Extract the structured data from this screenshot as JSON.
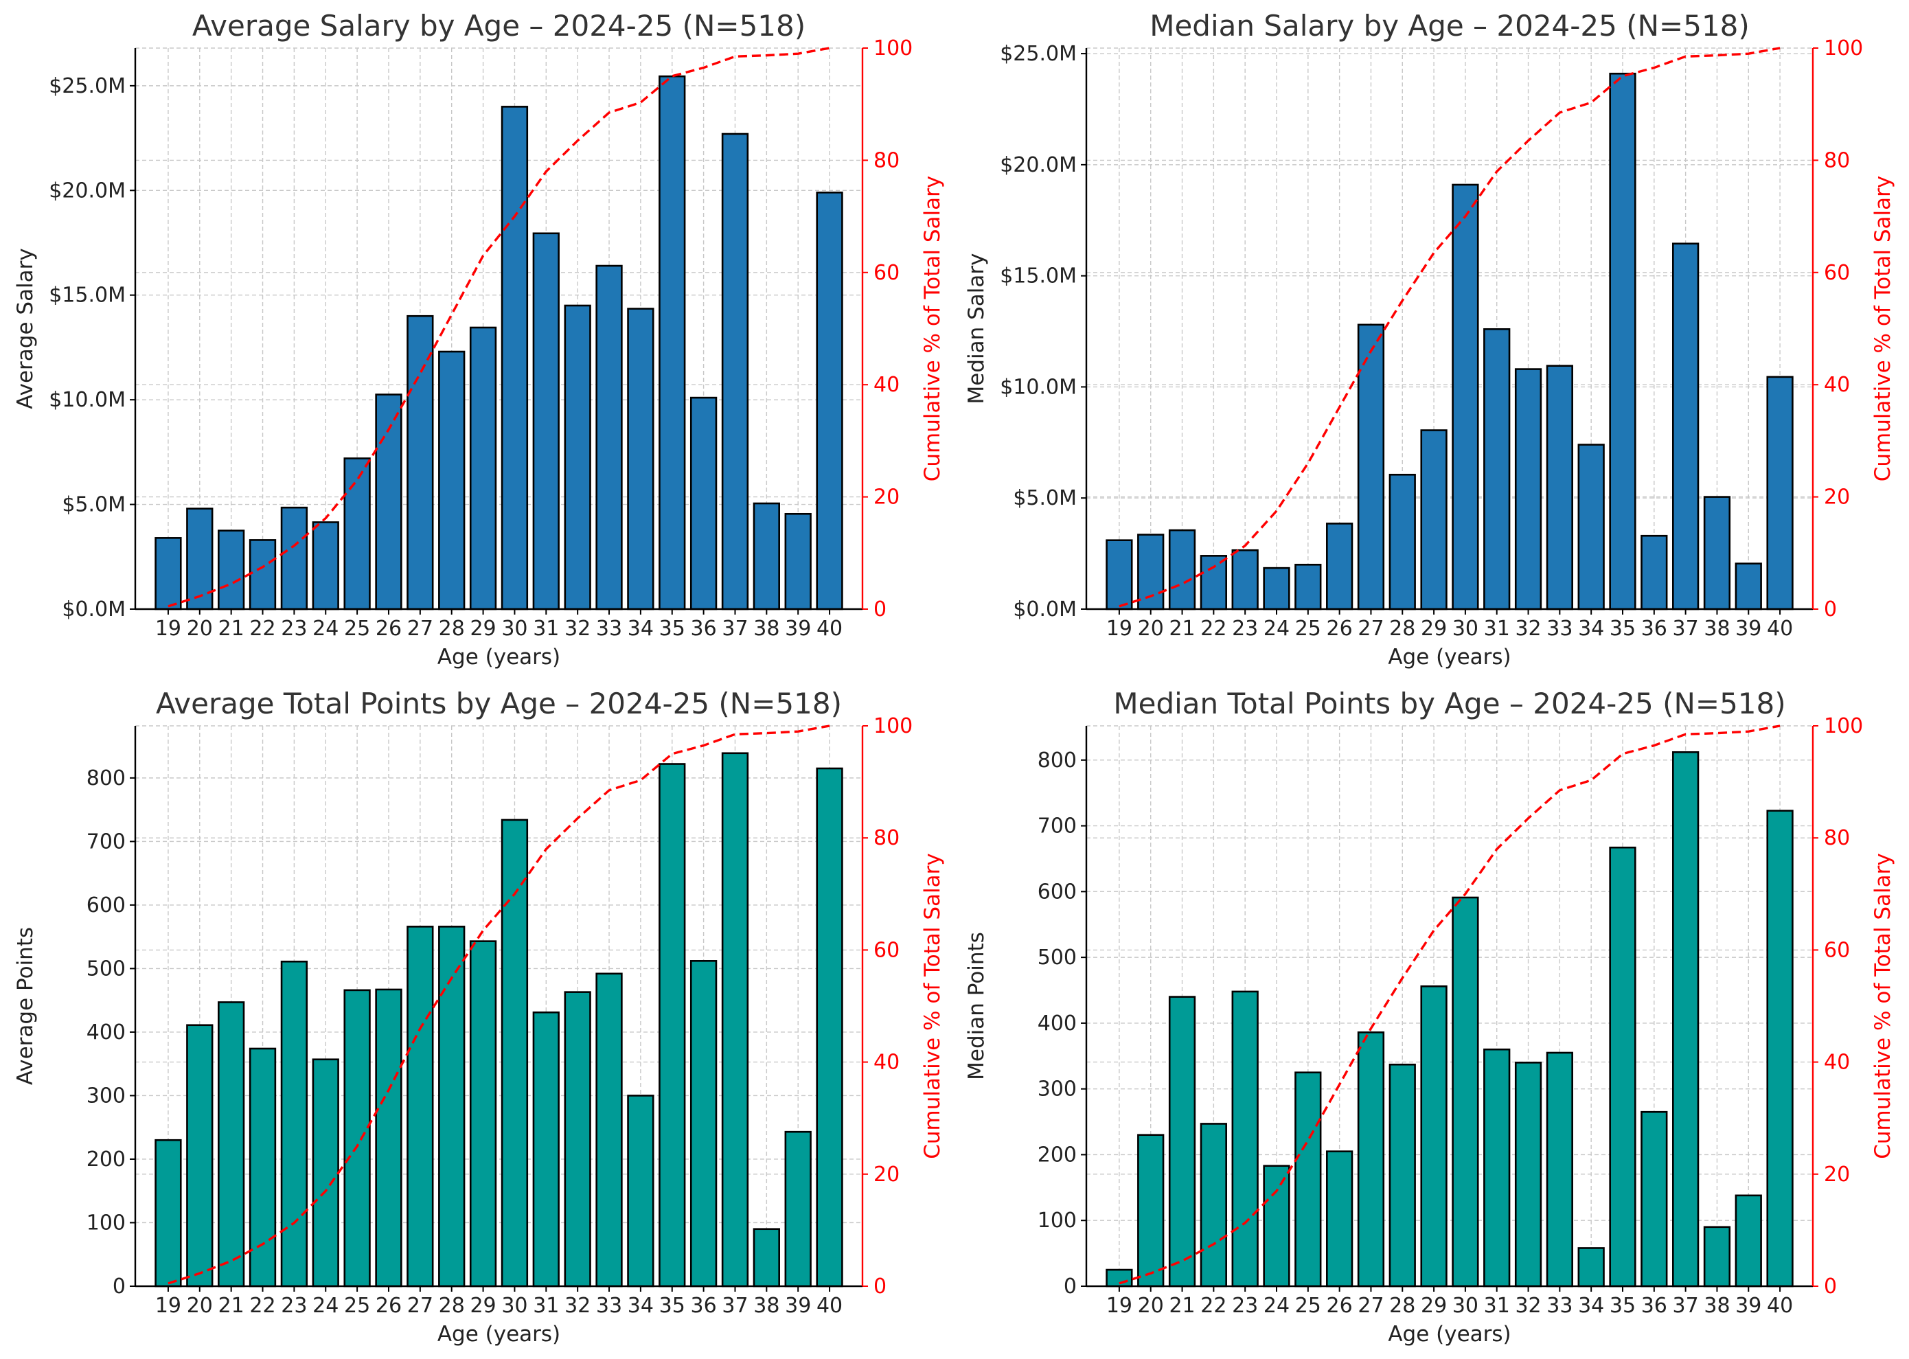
{
  "colors": {
    "salary_bar": "#1f77b4",
    "points_bar": "#009b96",
    "bar_edge": "#000000",
    "cumulative_line": "#ff0000",
    "grid": "#c8c8c8",
    "title": "#333333"
  },
  "chart_data": [
    {
      "type": "bar",
      "title": "Average Salary by Age – 2024-25 (N=518)",
      "xlabel": "Age (years)",
      "ylabel": "Average Salary",
      "y2label": "Cumulative % of Total Salary",
      "categories": [
        "19",
        "20",
        "21",
        "22",
        "23",
        "24",
        "25",
        "26",
        "27",
        "28",
        "29",
        "30",
        "31",
        "32",
        "33",
        "34",
        "35",
        "36",
        "37",
        "38",
        "39",
        "40"
      ],
      "values": [
        3.4,
        4.8,
        3.75,
        3.3,
        4.85,
        4.15,
        7.2,
        10.25,
        14.0,
        12.3,
        13.45,
        24.0,
        17.95,
        14.5,
        16.4,
        14.35,
        25.45,
        10.1,
        22.7,
        5.05,
        4.55,
        19.9
      ],
      "value_unit": "$M",
      "ylim": [
        0,
        26.8
      ],
      "yticks": [
        0,
        5,
        10,
        15,
        20,
        25
      ],
      "ytick_labels": [
        "$0.0M",
        "$5.0M",
        "$10.0M",
        "$15.0M",
        "$20.0M",
        "$25.0M"
      ],
      "y2lim": [
        0,
        100
      ],
      "y2ticks": [
        0,
        20,
        40,
        60,
        80,
        100
      ],
      "y2tick_labels": [
        "0",
        "20",
        "40",
        "60",
        "80",
        "100"
      ],
      "cumulative_percent": [
        0.5,
        2.3,
        4.5,
        7.5,
        11.3,
        16.2,
        23.0,
        32.0,
        42.0,
        52.5,
        63.0,
        70.0,
        78.0,
        83.5,
        88.5,
        90.3,
        95.0,
        96.5,
        98.5,
        98.7,
        99.0,
        100.0
      ],
      "bar_color": "#1f77b4",
      "grid": true
    },
    {
      "type": "bar",
      "title": "Median Salary by Age – 2024-25 (N=518)",
      "xlabel": "Age (years)",
      "ylabel": "Median Salary",
      "y2label": "Cumulative % of Total Salary",
      "categories": [
        "19",
        "20",
        "21",
        "22",
        "23",
        "24",
        "25",
        "26",
        "27",
        "28",
        "29",
        "30",
        "31",
        "32",
        "33",
        "34",
        "35",
        "36",
        "37",
        "38",
        "39",
        "40"
      ],
      "values": [
        3.1,
        3.35,
        3.55,
        2.4,
        2.65,
        1.85,
        2.0,
        3.85,
        12.8,
        6.05,
        8.05,
        19.1,
        12.6,
        10.8,
        10.95,
        7.4,
        24.1,
        3.3,
        16.45,
        5.05,
        2.05,
        10.45
      ],
      "value_unit": "$M",
      "ylim": [
        0,
        25.25
      ],
      "yticks": [
        0,
        5,
        10,
        15,
        20,
        25
      ],
      "ytick_labels": [
        "$0.0M",
        "$5.0M",
        "$10.0M",
        "$15.0M",
        "$20.0M",
        "$25.0M"
      ],
      "y2lim": [
        0,
        100
      ],
      "y2ticks": [
        0,
        20,
        40,
        60,
        80,
        100
      ],
      "y2tick_labels": [
        "0",
        "20",
        "40",
        "60",
        "80",
        "100"
      ],
      "cumulative_percent": [
        0.5,
        2.3,
        4.5,
        7.5,
        11.3,
        17.5,
        26.0,
        36.0,
        46.0,
        55.0,
        63.5,
        70.0,
        78.0,
        83.5,
        88.5,
        90.3,
        95.0,
        96.5,
        98.5,
        98.7,
        99.0,
        100.0
      ],
      "bar_color": "#1f77b4",
      "grid": true
    },
    {
      "type": "bar",
      "title": "Average Total Points by Age – 2024-25 (N=518)",
      "xlabel": "Age (years)",
      "ylabel": "Average Points",
      "y2label": "Cumulative % of Total Salary",
      "categories": [
        "19",
        "20",
        "21",
        "22",
        "23",
        "24",
        "25",
        "26",
        "27",
        "28",
        "29",
        "30",
        "31",
        "32",
        "33",
        "34",
        "35",
        "36",
        "37",
        "38",
        "39",
        "40"
      ],
      "values": [
        230,
        411,
        447,
        374,
        511,
        357,
        466,
        467,
        566,
        566,
        543,
        734,
        431,
        463,
        492,
        300,
        822,
        512,
        839,
        90,
        243,
        815
      ],
      "ylim": [
        0,
        882
      ],
      "yticks": [
        0,
        100,
        200,
        300,
        400,
        500,
        600,
        700,
        800
      ],
      "ytick_labels": [
        "0",
        "100",
        "200",
        "300",
        "400",
        "500",
        "600",
        "700",
        "800"
      ],
      "y2lim": [
        0,
        100
      ],
      "y2ticks": [
        0,
        20,
        40,
        60,
        80,
        100
      ],
      "y2tick_labels": [
        "0",
        "20",
        "40",
        "60",
        "80",
        "100"
      ],
      "cumulative_percent": [
        0.5,
        2.3,
        4.5,
        7.5,
        11.3,
        17.0,
        25.0,
        35.0,
        46.0,
        55.0,
        63.5,
        70.0,
        78.0,
        83.5,
        88.5,
        90.3,
        95.0,
        96.5,
        98.5,
        98.7,
        99.0,
        100.0
      ],
      "bar_color": "#009b96",
      "grid": true
    },
    {
      "type": "bar",
      "title": "Median Total Points by Age – 2024-25 (N=518)",
      "xlabel": "Age (years)",
      "ylabel": "Median Points",
      "y2label": "Cumulative % of Total Salary",
      "categories": [
        "19",
        "20",
        "21",
        "22",
        "23",
        "24",
        "25",
        "26",
        "27",
        "28",
        "29",
        "30",
        "31",
        "32",
        "33",
        "34",
        "35",
        "36",
        "37",
        "38",
        "39",
        "40"
      ],
      "values": [
        25,
        230,
        440,
        247,
        448,
        183,
        325,
        205,
        386,
        337,
        456,
        591,
        360,
        340,
        355,
        58,
        667,
        265,
        812,
        90,
        138,
        723
      ],
      "ylim": [
        0,
        852
      ],
      "yticks": [
        0,
        100,
        200,
        300,
        400,
        500,
        600,
        700,
        800
      ],
      "ytick_labels": [
        "0",
        "100",
        "200",
        "300",
        "400",
        "500",
        "600",
        "700",
        "800"
      ],
      "y2lim": [
        0,
        100
      ],
      "y2ticks": [
        0,
        20,
        40,
        60,
        80,
        100
      ],
      "y2tick_labels": [
        "0",
        "20",
        "40",
        "60",
        "80",
        "100"
      ],
      "cumulative_percent": [
        0.5,
        2.3,
        4.5,
        7.5,
        11.3,
        17.0,
        26.0,
        36.0,
        46.0,
        55.0,
        63.5,
        70.0,
        78.0,
        83.5,
        88.5,
        90.3,
        95.0,
        96.5,
        98.5,
        98.7,
        99.0,
        100.0
      ],
      "bar_color": "#009b96",
      "grid": true
    }
  ]
}
